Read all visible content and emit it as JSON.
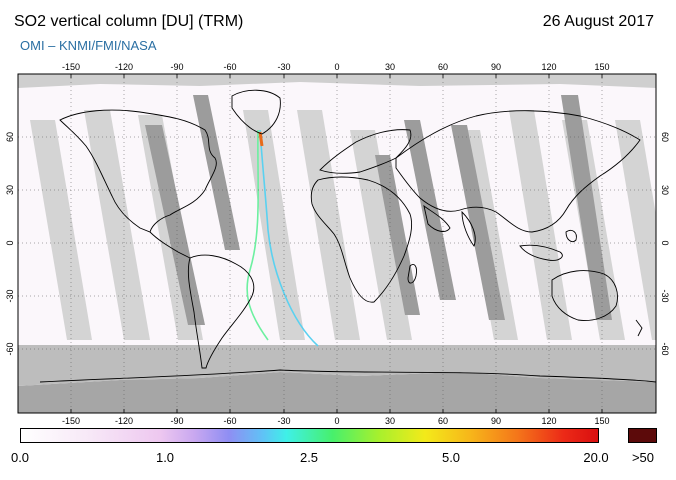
{
  "header": {
    "title": "SO2 vertical column [DU] (TRM)",
    "date": "26 August 2017",
    "credit": "OMI  –  KNMI/FMI/NASA"
  },
  "map": {
    "projection": "equirectangular",
    "longitude_ticks": [
      "-150",
      "-120",
      "-90",
      "-60",
      "-30",
      "0",
      "30",
      "60",
      "90",
      "120",
      "150"
    ],
    "latitude_ticks": [
      "60",
      "30",
      "0",
      "-30",
      "-60"
    ],
    "colors": {
      "land_outline": "#000000",
      "gap_dark": "#9a9a9a",
      "gap_light": "#d2d2d2",
      "polar_fill": "#a6a6a6",
      "data_background": "#fbf7fb"
    },
    "features": [
      "coastlines",
      "satellite orbit swaths",
      "row anomaly gap stripes",
      "South Atlantic Anomaly stripe",
      "graticule every 30 degrees"
    ]
  },
  "colorbar": {
    "labels": [
      "0.0",
      "1.0",
      "2.5",
      "5.0",
      "20.0"
    ],
    "over_label": ">50",
    "over_color": "#5c0a0a",
    "gradient_colors": [
      "#ffffff",
      "#eec8f0",
      "#8f8ef3",
      "#3ff0e8",
      "#47f06c",
      "#f3ea1a",
      "#f4761a",
      "#d90f10"
    ]
  }
}
